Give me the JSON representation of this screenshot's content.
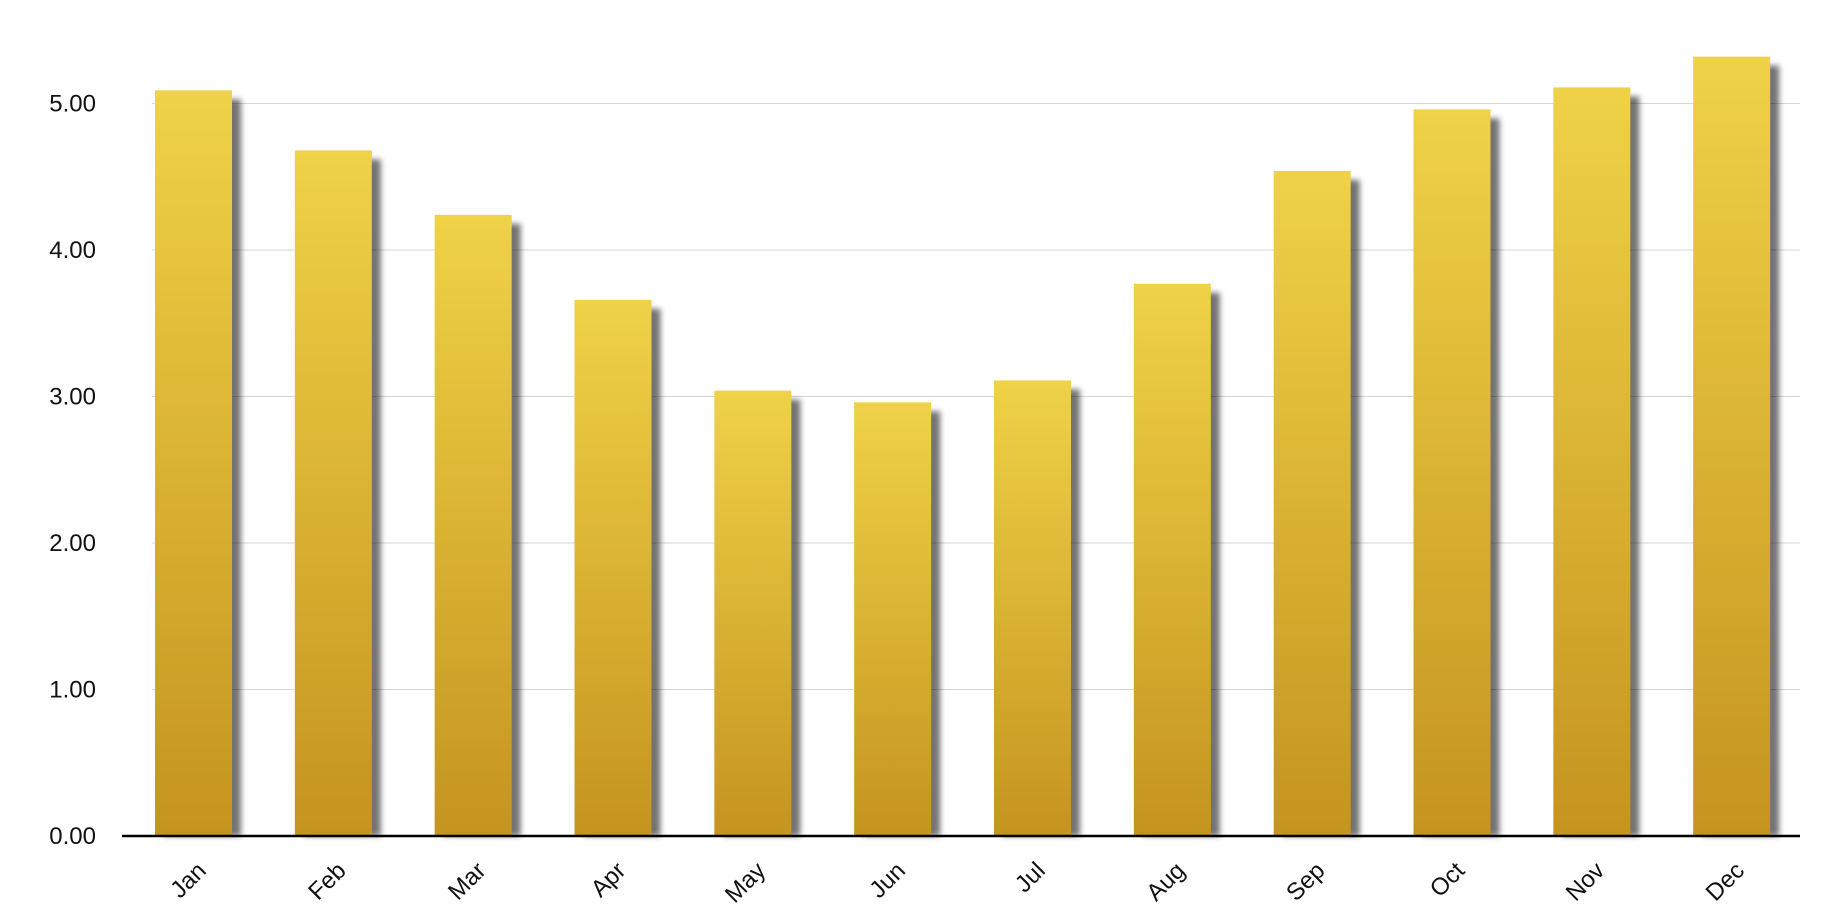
{
  "chart_data": {
    "type": "bar",
    "title": "",
    "xlabel": "",
    "ylabel": "",
    "categories": [
      "Jan",
      "Feb",
      "Mar",
      "Apr",
      "May",
      "Jun",
      "Jul",
      "Aug",
      "Sep",
      "Oct",
      "Nov",
      "Dec"
    ],
    "values": [
      5.09,
      4.68,
      4.24,
      3.66,
      3.04,
      2.96,
      3.11,
      3.77,
      4.54,
      4.96,
      5.11,
      5.32
    ],
    "ylim": [
      0,
      5.6
    ],
    "yticks": [
      "0.00",
      "1.00",
      "2.00",
      "3.00",
      "4.00",
      "5.00"
    ],
    "grid": true,
    "legend": "none",
    "colors": {
      "bar_top": "#efd247",
      "bar_bottom": "#c5941f",
      "shadow": "#000000",
      "gridline": "#d6d6d6",
      "axis": "#000000"
    }
  }
}
